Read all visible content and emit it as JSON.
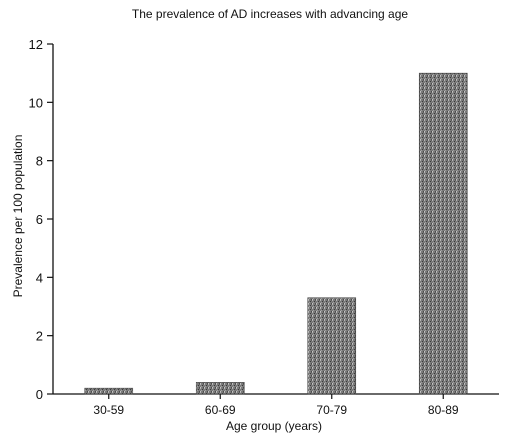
{
  "chart_data": {
    "type": "bar",
    "title": "The prevalence of AD increases with advancing age",
    "xlabel": "Age group (years)",
    "ylabel": "Prevalence per 100 population",
    "categories": [
      "30-59",
      "60-69",
      "70-79",
      "80-89"
    ],
    "category_labels": [
      "30-59",
      "60-69",
      "70-79",
      "80-89"
    ],
    "values": [
      0.2,
      0.4,
      3.3,
      11.0
    ],
    "ylim": [
      0,
      12
    ],
    "yticks": [
      0,
      2,
      4,
      6,
      8,
      10,
      12
    ],
    "grid": false,
    "legend": "none",
    "colors": {
      "bar": "#6e6e6e",
      "axis": "#111111"
    }
  }
}
